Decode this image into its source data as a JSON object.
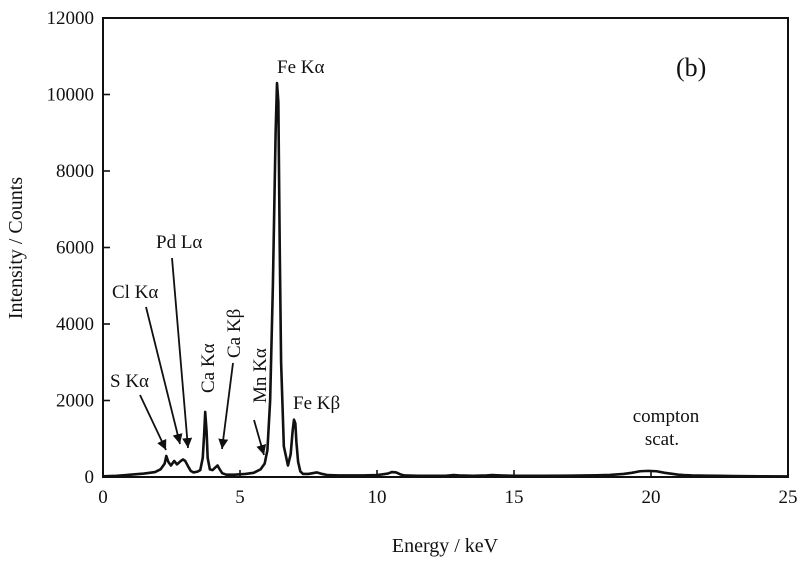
{
  "chart_data": {
    "type": "line",
    "panel_label": "(b)",
    "xlabel": "Energy / keV",
    "ylabel": "Intensity / Counts",
    "xlim": [
      0,
      25
    ],
    "ylim": [
      0,
      12000
    ],
    "x_ticks": [
      0,
      5,
      10,
      15,
      20,
      25
    ],
    "y_ticks": [
      0,
      2000,
      4000,
      6000,
      8000,
      10000,
      12000
    ],
    "grid": false,
    "legend": "none",
    "series": [
      {
        "x": [
          0,
          0.5,
          1,
          1.5,
          1.9,
          2.1,
          2.25,
          2.31,
          2.38,
          2.48,
          2.6,
          2.7,
          2.84,
          2.92,
          3.0,
          3.12,
          3.2,
          3.3,
          3.45,
          3.55,
          3.64,
          3.69,
          3.73,
          3.78,
          3.82,
          3.9,
          4.0,
          4.1,
          4.18,
          4.26,
          4.35,
          4.5,
          4.8,
          5.2,
          5.5,
          5.75,
          5.9,
          6.0,
          6.1,
          6.2,
          6.3,
          6.35,
          6.4,
          6.45,
          6.5,
          6.6,
          6.75,
          6.85,
          6.92,
          6.97,
          7.02,
          7.06,
          7.12,
          7.2,
          7.3,
          7.5,
          7.8,
          8.0,
          8.2,
          8.6,
          9.0,
          9.5,
          10.0,
          10.4,
          10.55,
          10.7,
          10.85,
          11.0,
          11.5,
          12.0,
          12.5,
          12.8,
          13.0,
          13.5,
          14.0,
          14.2,
          14.5,
          15.0,
          16.0,
          17.0,
          18.0,
          18.5,
          19.0,
          19.3,
          19.6,
          19.9,
          20.2,
          20.5,
          20.8,
          21.0,
          21.2,
          21.5,
          22.0,
          22.5,
          23.0,
          24.0,
          25.0
        ],
        "y": [
          20,
          30,
          60,
          90,
          130,
          200,
          350,
          550,
          400,
          300,
          420,
          330,
          420,
          460,
          420,
          260,
          160,
          120,
          140,
          180,
          500,
          1100,
          1700,
          1200,
          500,
          200,
          180,
          250,
          300,
          200,
          100,
          60,
          60,
          80,
          110,
          200,
          350,
          700,
          2000,
          5000,
          9000,
          10300,
          9800,
          6000,
          3000,
          800,
          300,
          600,
          1200,
          1500,
          1400,
          900,
          400,
          150,
          80,
          80,
          120,
          80,
          50,
          40,
          40,
          40,
          50,
          90,
          130,
          120,
          70,
          40,
          30,
          30,
          30,
          50,
          40,
          30,
          40,
          50,
          40,
          30,
          30,
          35,
          45,
          55,
          80,
          110,
          150,
          160,
          150,
          110,
          80,
          60,
          50,
          40,
          35,
          30,
          25,
          20,
          15
        ]
      }
    ],
    "annotations": [
      {
        "text": "Fe Kα",
        "x": 6.45,
        "y": 10300
      },
      {
        "text": "Fe Kβ",
        "x": 7.05,
        "y": 1500
      },
      {
        "text": "Mn Kα",
        "x": 5.9,
        "y": 350
      },
      {
        "text": "Ca Kβ",
        "x": 4.1,
        "y": 250
      },
      {
        "text": "Ca Kα",
        "x": 3.7,
        "y": 1700
      },
      {
        "text": "Pd Lα",
        "x": 3.0,
        "y": 420
      },
      {
        "text": "Cl Kα",
        "x": 2.6,
        "y": 420
      },
      {
        "text": "S Kα",
        "x": 2.3,
        "y": 550
      },
      {
        "text": "compton",
        "x": 19.9,
        "y": 160
      },
      {
        "text": "scat.",
        "x": 19.9,
        "y": 160
      }
    ]
  }
}
